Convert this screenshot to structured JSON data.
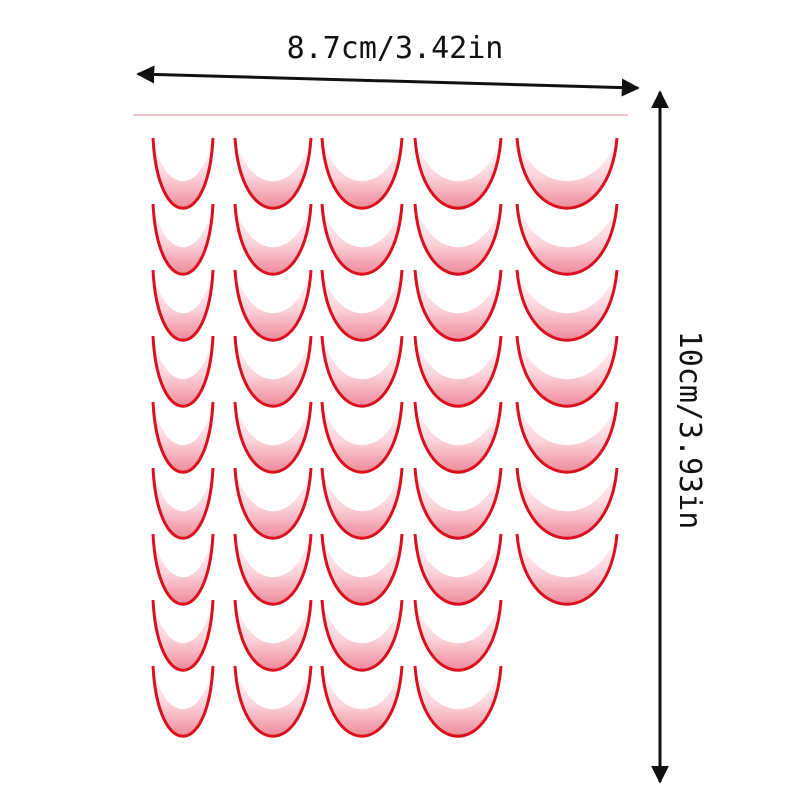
{
  "width_label": "8.7cm/3.42in",
  "height_label": "10cm/3.93in"
}
